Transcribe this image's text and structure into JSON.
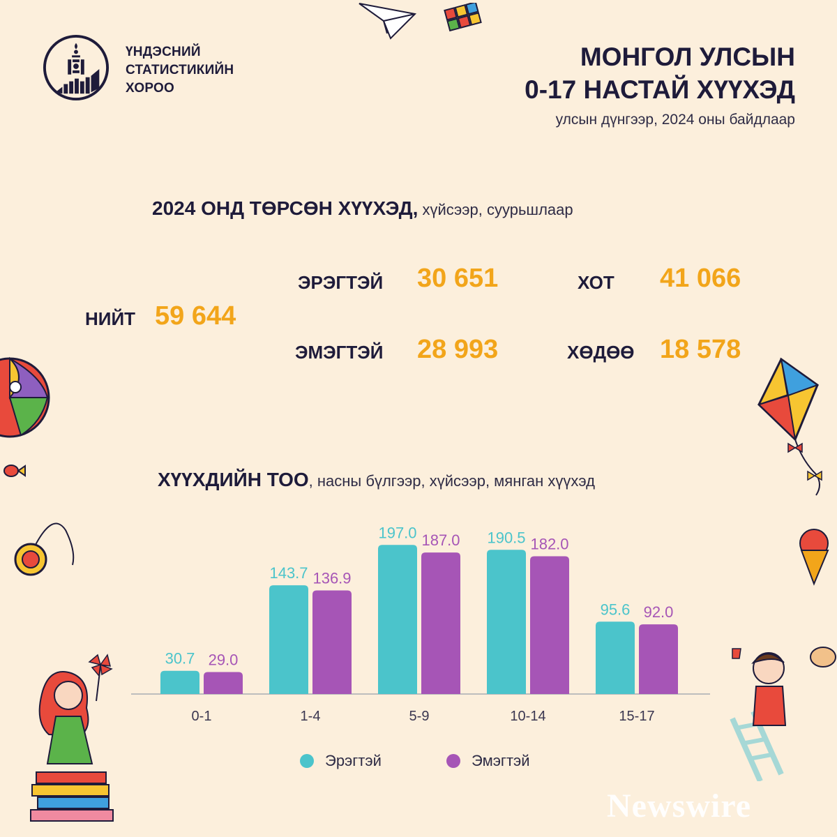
{
  "header": {
    "org_lines": [
      "ҮНДЭСНИЙ",
      "СТАТИСТИКИЙН",
      "ХОРОО"
    ],
    "title_lines": [
      "МОНГОЛ УЛСЫН",
      "0-17 НАСТАЙ ХҮҮХЭД"
    ],
    "subtitle": "улсын дүнгээр, 2024 оны байдлаар"
  },
  "births_section": {
    "heading_bold": "2024 ОНД ТӨРСӨН ХҮҮХЭД,",
    "heading_light": " хүйсээр, суурьшлаар",
    "total_label": "НИЙТ",
    "total_value": "59 644",
    "male_label": "ЭРЭГТЭЙ",
    "male_value": "30 651",
    "female_label": "ЭМЭГТЭЙ",
    "female_value": "28 993",
    "urban_label": "ХОТ",
    "urban_value": "41 066",
    "rural_label": "ХӨДӨӨ",
    "rural_value": "18 578"
  },
  "chart_section": {
    "heading_bold": "ХҮҮХДИЙН ТОО",
    "heading_light": ", насны бүлгээр, хүйсээр, мянган хүүхэд"
  },
  "chart_data": {
    "type": "bar",
    "categories": [
      "0-1",
      "1-4",
      "5-9",
      "10-14",
      "15-17"
    ],
    "series": [
      {
        "name": "Эрэгтэй",
        "values": [
          30.7,
          143.7,
          197.0,
          190.5,
          95.6
        ],
        "color": "#4bc4cb"
      },
      {
        "name": "Эмэгтэй",
        "values": [
          29.0,
          136.9,
          187.0,
          182.0,
          92.0
        ],
        "color": "#a655b6"
      }
    ],
    "ylim": [
      0,
      200
    ],
    "grid": false,
    "legend": "bottom"
  },
  "colors": {
    "background": "#fcefdc",
    "accent_orange": "#f2a51a",
    "text_dark": "#1e1b3a"
  },
  "watermark": "Newswire"
}
